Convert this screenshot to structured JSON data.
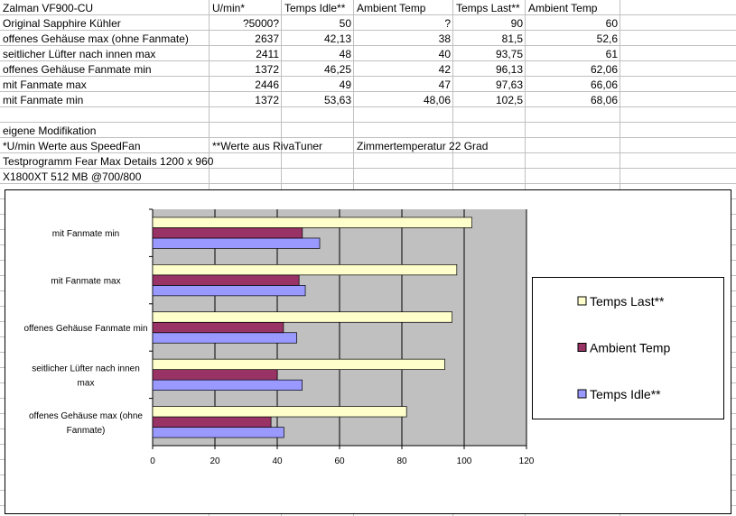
{
  "table": {
    "rows": [
      [
        "Zalman VF900-CU",
        "U/min*",
        "Temps Idle**",
        "Ambient Temp",
        "Temps Last**",
        "Ambient Temp"
      ],
      [
        "Original Sapphire Kühler",
        "?5000?",
        "50",
        "?",
        "90",
        "60"
      ],
      [
        "offenes Gehäuse max (ohne Fanmate)",
        "2637",
        "42,13",
        "38",
        "81,5",
        "52,6"
      ],
      [
        "seitlicher Lüfter nach innen max",
        "2411",
        "48",
        "40",
        "93,75",
        "61"
      ],
      [
        "offenes Gehäuse Fanmate min",
        "1372",
        "46,25",
        "42",
        "96,13",
        "62,06"
      ],
      [
        "mit Fanmate max",
        "2446",
        "49",
        "47",
        "97,63",
        "66,06"
      ],
      [
        "mit Fanmate min",
        "1372",
        "53,63",
        "48,06",
        "102,5",
        "68,06"
      ]
    ],
    "notes": [
      [
        "eigene Modifikation"
      ],
      [
        "*U/min Werte aus SpeedFan",
        "**Werte aus RivaTuner",
        null,
        "Zimmertemperatur 22 Grad"
      ],
      [
        "Testprogramm Fear Max Details 1200 x 960"
      ],
      [
        "X1800XT 512 MB @700/800"
      ]
    ]
  },
  "chart_data": {
    "type": "bar",
    "orientation": "horizontal",
    "categories": [
      "offenes Gehäuse max (ohne Fanmate)",
      "seitlicher Lüfter nach innen max",
      "offenes Gehäuse Fanmate min",
      "mit Fanmate max",
      "mit Fanmate min"
    ],
    "series": [
      {
        "name": "Temps Idle**",
        "color": "#9999ff",
        "values": [
          42.13,
          48,
          46.25,
          49,
          53.63
        ]
      },
      {
        "name": "Ambient Temp",
        "color": "#993366",
        "values": [
          38,
          40,
          42,
          47,
          48.06
        ]
      },
      {
        "name": "Temps Last**",
        "color": "#ffffcc",
        "values": [
          81.5,
          93.75,
          96.13,
          97.63,
          102.5
        ]
      }
    ],
    "xlim": [
      0,
      120
    ],
    "xticks": [
      0,
      20,
      40,
      60,
      80,
      100,
      120
    ],
    "grid": true,
    "legend": "right"
  }
}
